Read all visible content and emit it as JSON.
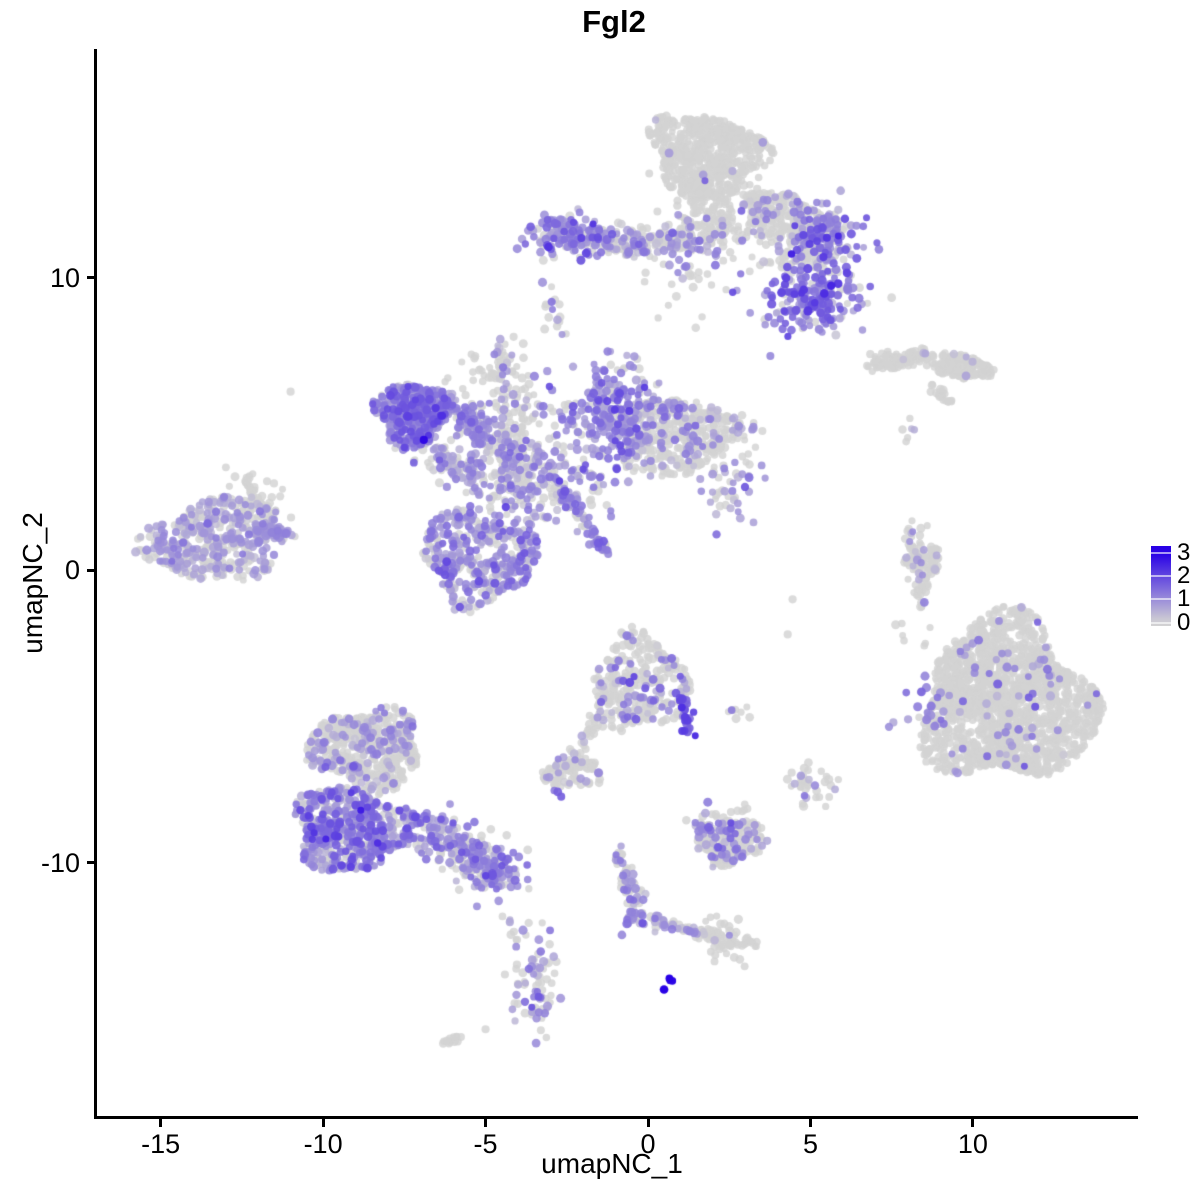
{
  "chart_data": {
    "type": "scatter",
    "title": "Fgl2",
    "xlabel": "umapNC_1",
    "ylabel": "umapNC_2",
    "xlim": [
      -17.02,
      15.05
    ],
    "ylim": [
      -18.7,
      17.78
    ],
    "x_ticks": [
      -15,
      -10,
      -5,
      0,
      5,
      10
    ],
    "y_ticks": [
      10,
      0,
      -10
    ],
    "grid": false,
    "legend_position": "right",
    "color_scale": {
      "low": "#D3D3D3",
      "high": "#2800E6",
      "vmin": 0,
      "vmax": 3
    },
    "legend": {
      "tick_labels": [
        "3",
        "2",
        "1",
        "0"
      ],
      "tick_values": [
        3,
        2,
        1,
        0
      ]
    },
    "point_radius": 3.9,
    "seed": 7,
    "clusters": [
      {
        "name": "top-cap-grey",
        "shape": "blob",
        "n": 560,
        "x": 1.8,
        "y": 14.2,
        "sx": 1.72,
        "sy": 1.38,
        "rot": -15,
        "p0": 0.985,
        "mu": 0.9,
        "sd": 0.4
      },
      {
        "name": "top-neck",
        "shape": "gauss",
        "n": 150,
        "x": 2.1,
        "y": 12.6,
        "sx": 0.65,
        "sy": 0.75,
        "rot": 0,
        "p0": 0.93,
        "mu": 0.8,
        "sd": 0.35
      },
      {
        "name": "neck-sparse",
        "shape": "gauss",
        "n": 45,
        "x": 0.9,
        "y": 10.7,
        "sx": 0.75,
        "sy": 0.8,
        "rot": 0,
        "p0": 0.9,
        "mu": 0.7,
        "sd": 0.3
      },
      {
        "name": "fan-grey",
        "shape": "blob",
        "n": 290,
        "x": 4.3,
        "y": 12.0,
        "sx": 1.55,
        "sy": 0.8,
        "rot": -18,
        "p0": 0.82,
        "mu": 0.85,
        "sd": 0.4
      },
      {
        "name": "fan-right-purple",
        "shape": "gauss",
        "n": 115,
        "x": 5.5,
        "y": 11.4,
        "sx": 0.55,
        "sy": 0.55,
        "rot": 0,
        "p0": 0.2,
        "mu": 1.2,
        "sd": 0.45
      },
      {
        "name": "fan-grey-pocket",
        "shape": "gauss",
        "n": 70,
        "x": 4.6,
        "y": 10.8,
        "sx": 0.5,
        "sy": 0.42,
        "rot": 0,
        "p0": 0.8,
        "mu": 0.75,
        "sd": 0.3
      },
      {
        "name": "right-purple-lower",
        "shape": "gauss",
        "n": 210,
        "x": 5.1,
        "y": 9.3,
        "sx": 0.78,
        "sy": 0.62,
        "rot": 0,
        "p0": 0.18,
        "mu": 1.25,
        "sd": 0.5
      },
      {
        "name": "band-left-purple",
        "shape": "gauss",
        "n": 125,
        "x": -2.5,
        "y": 11.5,
        "sx": 0.68,
        "sy": 0.34,
        "rot": 0,
        "p0": 0.2,
        "mu": 1.1,
        "sd": 0.4
      },
      {
        "name": "band-mid",
        "shape": "gauss",
        "n": 175,
        "x": -0.3,
        "y": 11.2,
        "sx": 1.1,
        "sy": 0.3,
        "rot": 0,
        "p0": 0.55,
        "mu": 0.9,
        "sd": 0.35
      },
      {
        "name": "band-right",
        "shape": "gauss",
        "n": 65,
        "x": 1.6,
        "y": 11.4,
        "sx": 0.6,
        "sy": 0.35,
        "rot": 0,
        "p0": 0.62,
        "mu": 0.9,
        "sd": 0.35
      },
      {
        "name": "band-streak-below",
        "shape": "gauss",
        "n": 16,
        "x": -2.9,
        "y": 8.8,
        "sx": 0.18,
        "sy": 0.5,
        "rot": 0,
        "p0": 0.45,
        "mu": 0.9,
        "sd": 0.35
      },
      {
        "name": "mid-purple-blob",
        "shape": "blob",
        "n": 370,
        "x": -7.25,
        "y": 5.35,
        "sx": 1.1,
        "sy": 1.1,
        "rot": 18,
        "p0": 0.1,
        "mu": 1.15,
        "sd": 0.45
      },
      {
        "name": "mid-bridge-upper",
        "shape": "line",
        "n": 140,
        "x": -6.3,
        "y": 5.9,
        "x2": -4.7,
        "y2": 4.4,
        "sx": 0.28,
        "sy": 0.28,
        "rot": 0,
        "p0": 0.32,
        "mu": 1.0,
        "sd": 0.4
      },
      {
        "name": "mid-bridge-lower",
        "shape": "line",
        "n": 90,
        "x": -6.7,
        "y": 4.0,
        "x2": -5.0,
        "y2": 3.1,
        "sx": 0.3,
        "sy": 0.3,
        "rot": 0,
        "p0": 0.4,
        "mu": 0.95,
        "sd": 0.35
      },
      {
        "name": "strand-vertical",
        "shape": "gauss",
        "n": 125,
        "x": -4.15,
        "y": 5.0,
        "sx": 0.38,
        "sy": 1.25,
        "rot": 0,
        "p0": 0.68,
        "mu": 0.7,
        "sd": 0.35
      },
      {
        "name": "strand-top",
        "shape": "gauss",
        "n": 20,
        "x": -4.4,
        "y": 7.3,
        "sx": 0.2,
        "sy": 0.45,
        "rot": 0,
        "p0": 0.75,
        "mu": 0.6,
        "sd": 0.3
      },
      {
        "name": "grey-hat",
        "shape": "gauss",
        "n": 26,
        "x": -4.85,
        "y": 6.9,
        "sx": 0.36,
        "sy": 0.28,
        "rot": 0,
        "p0": 0.95,
        "mu": 0.5,
        "sd": 0.2
      },
      {
        "name": "center-mixed",
        "shape": "gauss",
        "n": 270,
        "x": -3.6,
        "y": 3.2,
        "sx": 1.0,
        "sy": 0.8,
        "rot": 0,
        "p0": 0.42,
        "mu": 0.9,
        "sd": 0.4
      },
      {
        "name": "wing-purple",
        "shape": "gauss",
        "n": 265,
        "x": -1.1,
        "y": 5.3,
        "sx": 0.75,
        "sy": 0.95,
        "rot": 0,
        "p0": 0.22,
        "mu": 1.05,
        "sd": 0.4
      },
      {
        "name": "wing-grey",
        "shape": "blob",
        "n": 430,
        "x": 0.9,
        "y": 4.6,
        "sx": 1.95,
        "sy": 1.3,
        "rot": 10,
        "p0": 0.8,
        "mu": 0.75,
        "sd": 0.35
      },
      {
        "name": "wing-tip",
        "shape": "gauss",
        "n": 55,
        "x": 2.6,
        "y": 3.1,
        "sx": 0.5,
        "sy": 0.7,
        "rot": 0,
        "p0": 0.55,
        "mu": 0.9,
        "sd": 0.35
      },
      {
        "name": "mid-bottom-blob",
        "shape": "blob",
        "n": 400,
        "x": -5.2,
        "y": 0.45,
        "sx": 1.75,
        "sy": 1.6,
        "rot": -10,
        "p0": 0.32,
        "mu": 0.9,
        "sd": 0.4
      },
      {
        "name": "diag-streak",
        "shape": "line",
        "n": 58,
        "x": -2.75,
        "y": 3.0,
        "x2": -1.3,
        "y2": 0.6,
        "sx": 0.09,
        "sy": 0.09,
        "rot": 0,
        "p0": 0.25,
        "mu": 1.2,
        "sd": 0.35
      },
      {
        "name": "left-blob",
        "shape": "blob",
        "n": 450,
        "x": -13.35,
        "y": 1.0,
        "sx": 2.1,
        "sy": 1.4,
        "rot": 8,
        "p0": 0.46,
        "mu": 0.68,
        "sd": 0.3
      },
      {
        "name": "left-tip",
        "shape": "line",
        "n": 46,
        "x": -12.3,
        "y": 1.35,
        "x2": -10.95,
        "y2": 1.3,
        "sx": 0.14,
        "sy": 0.14,
        "rot": 0,
        "p0": 0.15,
        "mu": 0.95,
        "sd": 0.3
      },
      {
        "name": "left-arm",
        "shape": "gauss",
        "n": 40,
        "x": -12.1,
        "y": 2.7,
        "sx": 0.5,
        "sy": 0.28,
        "rot": -35,
        "p0": 0.93,
        "mu": 0.5,
        "sd": 0.25
      },
      {
        "name": "sliver-left",
        "shape": "line",
        "n": 100,
        "x": 6.8,
        "y": 7.0,
        "x2": 8.6,
        "y2": 7.35,
        "sx": 0.15,
        "sy": 0.15,
        "rot": 0,
        "p0": 0.97,
        "mu": 0.5,
        "sd": 0.2
      },
      {
        "name": "sliver-right",
        "shape": "blob",
        "n": 155,
        "x": 9.7,
        "y": 6.95,
        "sx": 0.9,
        "sy": 0.4,
        "rot": -8,
        "p0": 0.985,
        "mu": 0.5,
        "sd": 0.2
      },
      {
        "name": "sliver-dash",
        "shape": "line",
        "n": 20,
        "x": 8.75,
        "y": 6.25,
        "x2": 9.35,
        "y2": 5.75,
        "sx": 0.09,
        "sy": 0.09,
        "rot": 0,
        "p0": 1.0,
        "mu": 0.5,
        "sd": 0.2
      },
      {
        "name": "tiny-dots",
        "shape": "gauss",
        "n": 6,
        "x": 8.0,
        "y": 4.7,
        "sx": 0.18,
        "sy": 0.3,
        "rot": 0,
        "p0": 0.85,
        "mu": 0.6,
        "sd": 0.2
      },
      {
        "name": "c-sliver",
        "shape": "line",
        "n": 85,
        "x": 8.2,
        "y": 1.4,
        "x2": 8.4,
        "y2": -0.95,
        "sx": 0.17,
        "sy": 0.17,
        "rot": 0,
        "p0": 0.85,
        "mu": 0.7,
        "sd": 0.25
      },
      {
        "name": "c-sliver-right",
        "shape": "line",
        "n": 28,
        "x": 8.75,
        "y": 0.85,
        "x2": 8.8,
        "y2": -0.15,
        "sx": 0.11,
        "sy": 0.11,
        "rot": 0,
        "p0": 0.92,
        "mu": 0.5,
        "sd": 0.2
      },
      {
        "name": "stray-mid-right",
        "shape": "gauss",
        "n": 10,
        "x": 8.5,
        "y": -1.9,
        "sx": 0.5,
        "sy": 0.65,
        "rot": 0,
        "p0": 1.0,
        "mu": 0.5,
        "sd": 0.2
      },
      {
        "name": "big-right-blob",
        "shape": "blob",
        "n": 1550,
        "x": 11.05,
        "y": -4.5,
        "sx": 2.6,
        "sy": 2.75,
        "rot": 18,
        "p0": 0.976,
        "mu": 0.95,
        "sd": 0.4
      },
      {
        "name": "big-right-left-pocket",
        "shape": "gauss",
        "n": 27,
        "x": 8.7,
        "y": -4.9,
        "sx": 0.42,
        "sy": 0.55,
        "rot": 0,
        "p0": 0.2,
        "mu": 1.0,
        "sd": 0.35
      },
      {
        "name": "big-right-sprinkle",
        "shape": "blob",
        "n": 26,
        "x": 11.3,
        "y": -4.3,
        "sx": 2.2,
        "sy": 2.0,
        "rot": 18,
        "p0": 0.0,
        "mu": 1.05,
        "sd": 0.4
      },
      {
        "name": "bottomleft-dome",
        "shape": "blob",
        "n": 520,
        "x": -8.65,
        "y": -6.1,
        "sx": 1.7,
        "sy": 1.35,
        "rot": -5,
        "p0": 0.78,
        "mu": 0.75,
        "sd": 0.35
      },
      {
        "name": "bottomleft-purple",
        "shape": "blob",
        "n": 580,
        "x": -9.15,
        "y": -8.85,
        "sx": 1.8,
        "sy": 1.4,
        "rot": -8,
        "p0": 0.28,
        "mu": 1.05,
        "sd": 0.5
      },
      {
        "name": "bottomleft-tail",
        "shape": "line",
        "n": 240,
        "x": -7.2,
        "y": -8.7,
        "x2": -4.6,
        "y2": -10.3,
        "sx": 0.48,
        "sy": 0.4,
        "rot": 0,
        "p0": 0.45,
        "mu": 0.95,
        "sd": 0.4
      },
      {
        "name": "tail-tip-purple",
        "shape": "gauss",
        "n": 70,
        "x": -4.65,
        "y": -10.3,
        "sx": 0.4,
        "sy": 0.33,
        "rot": 0,
        "p0": 0.22,
        "mu": 1.1,
        "sd": 0.4
      },
      {
        "name": "below-tail-dots",
        "shape": "line",
        "n": 9,
        "x": -4.3,
        "y": -11.3,
        "x2": -3.9,
        "y2": -13.2,
        "sx": 0.13,
        "sy": 0.13,
        "rot": 0,
        "p0": 0.75,
        "mu": 0.7,
        "sd": 0.25
      },
      {
        "name": "bottom-vertical",
        "shape": "gauss",
        "n": 78,
        "x": -3.5,
        "y": -14.3,
        "sx": 0.34,
        "sy": 0.88,
        "rot": 0,
        "p0": 0.5,
        "mu": 0.95,
        "sd": 0.35
      },
      {
        "name": "bottom-smear",
        "shape": "line",
        "n": 12,
        "x": -6.35,
        "y": -16.25,
        "x2": -5.8,
        "y2": -15.95,
        "sx": 0.08,
        "sy": 0.08,
        "rot": 0,
        "p0": 1.0,
        "mu": 0.5,
        "sd": 0.2
      },
      {
        "name": "centerbottom-cluster",
        "shape": "blob",
        "n": 320,
        "x": -0.25,
        "y": -3.9,
        "sx": 1.5,
        "sy": 1.6,
        "rot": 0,
        "p0": 0.82,
        "mu": 1.0,
        "sd": 0.45
      },
      {
        "name": "centerbottom-darkstreak",
        "shape": "line",
        "n": 27,
        "x": 0.95,
        "y": -4.15,
        "x2": 1.3,
        "y2": -5.75,
        "sx": 0.1,
        "sy": 0.1,
        "rot": 0,
        "p0": 0.08,
        "mu": 1.7,
        "sd": 0.5
      },
      {
        "name": "centerbottom-strand",
        "shape": "line",
        "n": 26,
        "x": -1.5,
        "y": -4.95,
        "x2": -2.3,
        "y2": -6.35,
        "sx": 0.12,
        "sy": 0.12,
        "rot": 0,
        "p0": 0.92,
        "mu": 0.5,
        "sd": 0.2
      },
      {
        "name": "small-left-blob",
        "shape": "blob",
        "n": 95,
        "x": -2.35,
        "y": -6.9,
        "sx": 0.9,
        "sy": 0.55,
        "rot": 5,
        "p0": 0.85,
        "mu": 0.7,
        "sd": 0.3
      },
      {
        "name": "purple-pair",
        "shape": "gauss",
        "n": 3,
        "x": -2.7,
        "y": -7.6,
        "sx": 0.09,
        "sy": 0.14,
        "rot": 0,
        "p0": 0.0,
        "mu": 1.5,
        "sd": 0.25
      },
      {
        "name": "right-tiny-group",
        "shape": "gauss",
        "n": 8,
        "x": 2.9,
        "y": -5.0,
        "sx": 0.3,
        "sy": 0.15,
        "rot": 0,
        "p0": 0.8,
        "mu": 1.3,
        "sd": 0.3
      },
      {
        "name": "farright-small",
        "shape": "gauss",
        "n": 36,
        "x": 5.1,
        "y": -7.3,
        "sx": 0.4,
        "sy": 0.36,
        "rot": 0,
        "p0": 0.85,
        "mu": 0.8,
        "sd": 0.3
      },
      {
        "name": "bottomcenter-cluster",
        "shape": "blob",
        "n": 185,
        "x": 2.5,
        "y": -9.2,
        "sx": 1.1,
        "sy": 0.8,
        "rot": -10,
        "p0": 0.76,
        "mu": 0.9,
        "sd": 0.4
      },
      {
        "name": "bottomcenter-left-purple",
        "shape": "gauss",
        "n": 22,
        "x": 1.85,
        "y": -9.0,
        "sx": 0.36,
        "sy": 0.4,
        "rot": 0,
        "p0": 0.15,
        "mu": 1.1,
        "sd": 0.35
      },
      {
        "name": "bottomcenter-bits",
        "shape": "gauss",
        "n": 6,
        "x": 2.8,
        "y": -8.25,
        "sx": 0.2,
        "sy": 0.12,
        "rot": 0,
        "p0": 1.0,
        "mu": 0.5,
        "sd": 0.2
      },
      {
        "name": "trail-strand-down",
        "shape": "line",
        "n": 56,
        "x": -0.95,
        "y": -9.5,
        "x2": -0.45,
        "y2": -11.5,
        "sx": 0.12,
        "sy": 0.12,
        "rot": 0,
        "p0": 0.6,
        "mu": 0.9,
        "sd": 0.35
      },
      {
        "name": "trail-knot",
        "shape": "gauss",
        "n": 22,
        "x": -0.42,
        "y": -11.9,
        "sx": 0.22,
        "sy": 0.3,
        "rot": 0,
        "p0": 0.25,
        "mu": 1.15,
        "sd": 0.35
      },
      {
        "name": "trail-strand-right",
        "shape": "line",
        "n": 42,
        "x": 0.0,
        "y": -11.95,
        "x2": 1.5,
        "y2": -12.4,
        "sx": 0.1,
        "sy": 0.1,
        "rot": 0,
        "p0": 0.55,
        "mu": 0.8,
        "sd": 0.3
      },
      {
        "name": "trail-join",
        "shape": "line",
        "n": 20,
        "x": 1.5,
        "y": -12.4,
        "x2": 2.2,
        "y2": -12.6,
        "sx": 0.08,
        "sy": 0.08,
        "rot": 0,
        "p0": 0.95,
        "mu": 0.6,
        "sd": 0.2
      },
      {
        "name": "trail-right-blob",
        "shape": "gauss",
        "n": 56,
        "x": 2.55,
        "y": -12.7,
        "sx": 0.5,
        "sy": 0.38,
        "rot": -20,
        "p0": 0.95,
        "mu": 1.1,
        "sd": 0.3
      },
      {
        "name": "blue-knot",
        "shape": "gauss",
        "n": 4,
        "x": 0.62,
        "y": -14.1,
        "sx": 0.08,
        "sy": 0.1,
        "rot": 0,
        "p0": 0.0,
        "mu": 2.95,
        "sd": 0.1
      }
    ],
    "singles": [
      {
        "x": -3.1,
        "y": 6.8,
        "v": 0.9
      },
      {
        "x": -2.95,
        "y": 6.15,
        "v": 1.1
      },
      {
        "x": -11.0,
        "y": 6.1,
        "v": 0
      },
      {
        "x": 4.3,
        "y": -2.2,
        "v": 0
      },
      {
        "x": -5.0,
        "y": -15.7,
        "v": 0
      },
      {
        "x": -6.9,
        "y": 4.45,
        "v": 2.9
      },
      {
        "x": 4.45,
        "y": -1.0,
        "v": 0
      }
    ]
  }
}
